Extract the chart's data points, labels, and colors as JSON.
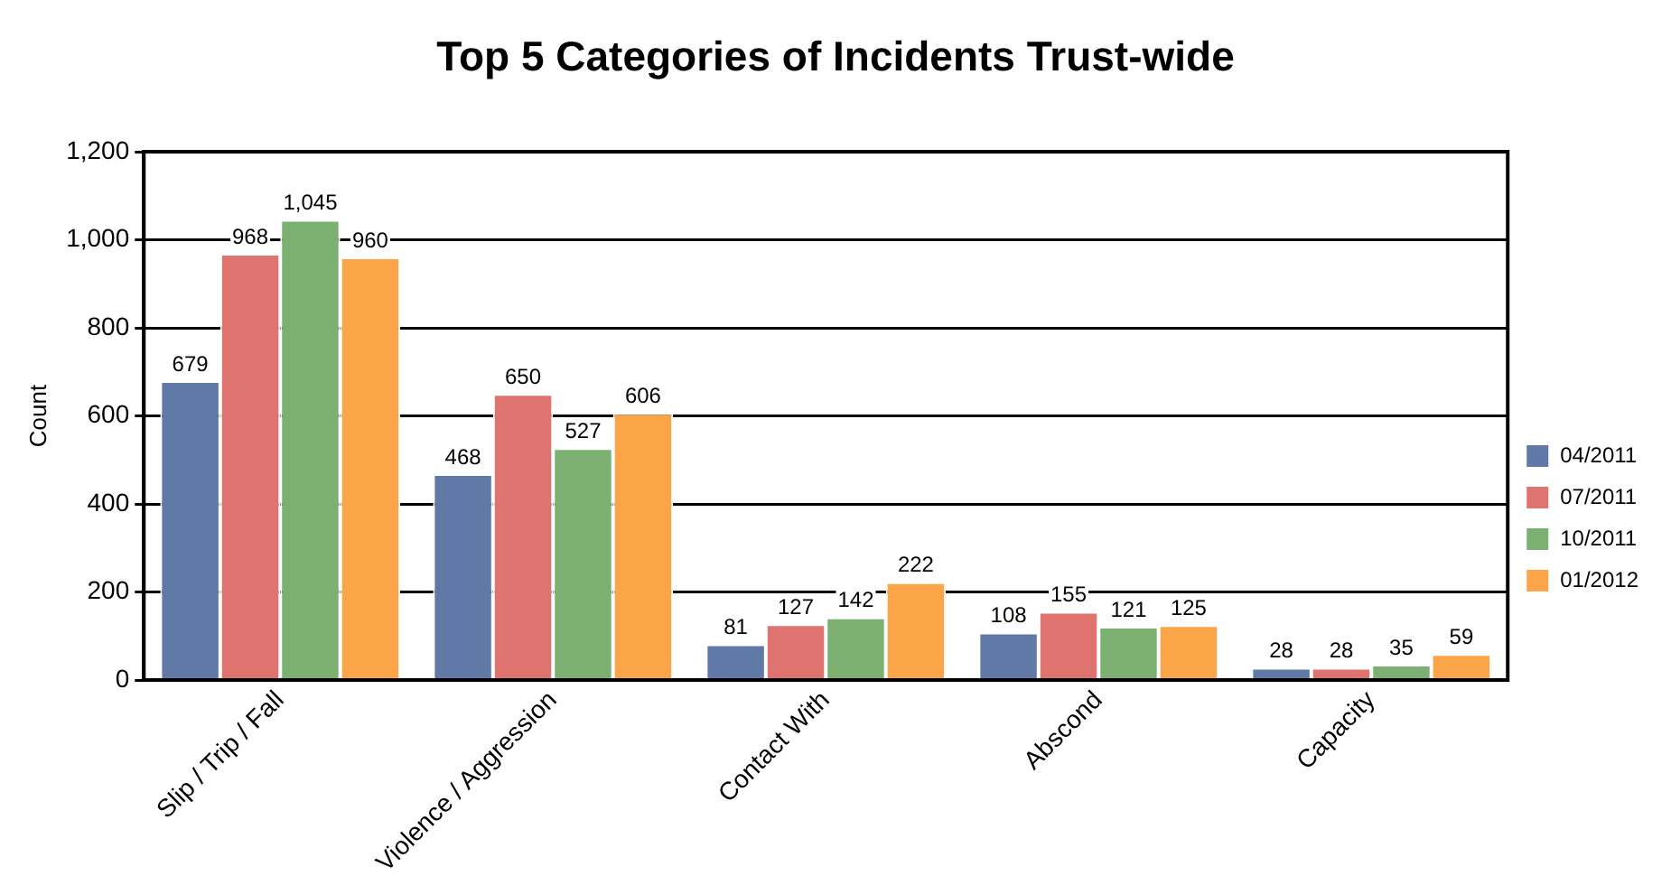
{
  "chart_data": {
    "type": "bar",
    "title": "Top 5 Categories of Incidents Trust-wide",
    "ylabel": "Count",
    "categories": [
      "Slip / Trip / Fall",
      "Violence / Aggression",
      "Contact With",
      "Abscond",
      "Capacity"
    ],
    "series": [
      {
        "name": "04/2011",
        "color": "#6079a6",
        "values": [
          679,
          468,
          81,
          108,
          28
        ],
        "value_labels": [
          "679",
          "468",
          "81",
          "108",
          "28"
        ]
      },
      {
        "name": "07/2011",
        "color": "#df7370",
        "values": [
          968,
          650,
          127,
          155,
          28
        ],
        "value_labels": [
          "968",
          "650",
          "127",
          "155",
          "28"
        ]
      },
      {
        "name": "10/2011",
        "color": "#7bb072",
        "values": [
          1045,
          527,
          142,
          121,
          35
        ],
        "value_labels": [
          "1,045",
          "527",
          "142",
          "121",
          "35"
        ]
      },
      {
        "name": "01/2012",
        "color": "#fba448",
        "values": [
          960,
          606,
          222,
          125,
          59
        ],
        "value_labels": [
          "960",
          "606",
          "222",
          "125",
          "59"
        ]
      }
    ],
    "ylim": [
      0,
      1200
    ],
    "yticks": [
      {
        "value": 0,
        "label": "0"
      },
      {
        "value": 200,
        "label": "200"
      },
      {
        "value": 400,
        "label": "400"
      },
      {
        "value": 600,
        "label": "600"
      },
      {
        "value": 800,
        "label": "800"
      },
      {
        "value": 1000,
        "label": "1,000"
      },
      {
        "value": 1200,
        "label": "1,200"
      }
    ],
    "grid": "y",
    "legend": "right"
  }
}
